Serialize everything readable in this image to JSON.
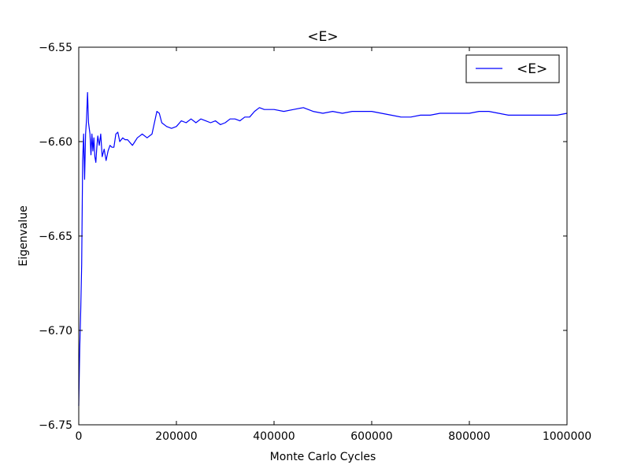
{
  "chart_data": {
    "type": "line",
    "title": "<E>",
    "xlabel": "Monte Carlo Cycles",
    "ylabel": "Eigenvalue",
    "xlim": [
      0,
      1000000
    ],
    "ylim": [
      -6.75,
      -6.55
    ],
    "x_ticks": [
      0,
      200000,
      400000,
      600000,
      800000,
      1000000
    ],
    "x_tick_labels": [
      "0",
      "200000",
      "400000",
      "600000",
      "800000",
      "1000000"
    ],
    "y_ticks": [
      -6.75,
      -6.7,
      -6.65,
      -6.6,
      -6.55
    ],
    "y_tick_labels": [
      "−6.75",
      "−6.70",
      "−6.65",
      "−6.60",
      "−6.55"
    ],
    "grid": false,
    "legend_position": "top-right",
    "series": [
      {
        "name": "<E>",
        "color": "#0000ff",
        "x": [
          0,
          2000,
          4000,
          6000,
          8000,
          10000,
          12000,
          14000,
          16000,
          18000,
          20000,
          23000,
          25000,
          27000,
          29000,
          31000,
          33000,
          35000,
          37000,
          39000,
          42000,
          45000,
          48000,
          52000,
          56000,
          60000,
          64000,
          68000,
          72000,
          76000,
          80000,
          84000,
          90000,
          95000,
          100000,
          110000,
          115000,
          120000,
          125000,
          130000,
          140000,
          150000,
          160000,
          165000,
          170000,
          180000,
          190000,
          200000,
          210000,
          220000,
          230000,
          240000,
          250000,
          260000,
          270000,
          280000,
          290000,
          300000,
          310000,
          320000,
          330000,
          340000,
          350000,
          360000,
          370000,
          380000,
          390000,
          400000,
          420000,
          440000,
          460000,
          480000,
          500000,
          520000,
          540000,
          560000,
          580000,
          600000,
          620000,
          640000,
          660000,
          680000,
          700000,
          720000,
          740000,
          760000,
          780000,
          800000,
          820000,
          840000,
          860000,
          880000,
          900000,
          920000,
          940000,
          960000,
          980000,
          1000000
        ],
        "y": [
          -6.74,
          -6.71,
          -6.69,
          -6.665,
          -6.61,
          -6.596,
          -6.62,
          -6.596,
          -6.588,
          -6.574,
          -6.59,
          -6.596,
          -6.607,
          -6.596,
          -6.605,
          -6.598,
          -6.608,
          -6.611,
          -6.603,
          -6.597,
          -6.602,
          -6.596,
          -6.608,
          -6.604,
          -6.61,
          -6.605,
          -6.602,
          -6.603,
          -6.603,
          -6.596,
          -6.595,
          -6.6,
          -6.598,
          -6.599,
          -6.599,
          -6.602,
          -6.6,
          -6.598,
          -6.597,
          -6.596,
          -6.598,
          -6.596,
          -6.584,
          -6.585,
          -6.59,
          -6.592,
          -6.593,
          -6.592,
          -6.589,
          -6.59,
          -6.588,
          -6.59,
          -6.588,
          -6.589,
          -6.59,
          -6.589,
          -6.591,
          -6.59,
          -6.588,
          -6.588,
          -6.589,
          -6.587,
          -6.587,
          -6.584,
          -6.582,
          -6.583,
          -6.583,
          -6.583,
          -6.584,
          -6.583,
          -6.582,
          -6.584,
          -6.585,
          -6.584,
          -6.585,
          -6.584,
          -6.584,
          -6.584,
          -6.585,
          -6.586,
          -6.587,
          -6.587,
          -6.586,
          -6.586,
          -6.585,
          -6.585,
          -6.585,
          -6.585,
          -6.584,
          -6.584,
          -6.585,
          -6.586,
          -6.586,
          -6.586,
          -6.586,
          -6.586,
          -6.586,
          -6.585
        ]
      }
    ]
  }
}
